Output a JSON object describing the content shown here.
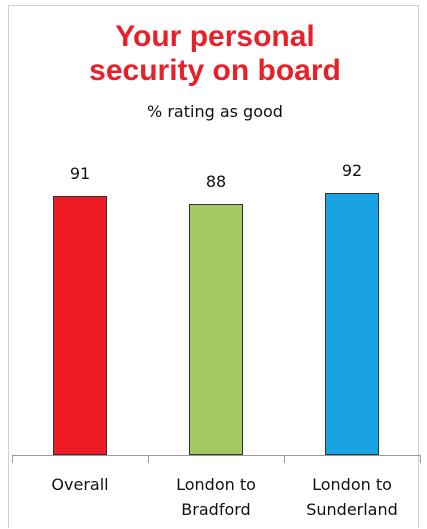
{
  "chart_data": {
    "type": "bar",
    "title": "Your personal security on board",
    "subtitle": "% rating as good",
    "categories": [
      "Overall",
      "London to Bradford",
      "London to Sunderland"
    ],
    "values": [
      91,
      88,
      92
    ],
    "colors": [
      "#ed1c24",
      "#a4c863",
      "#1aa3e2"
    ]
  }
}
